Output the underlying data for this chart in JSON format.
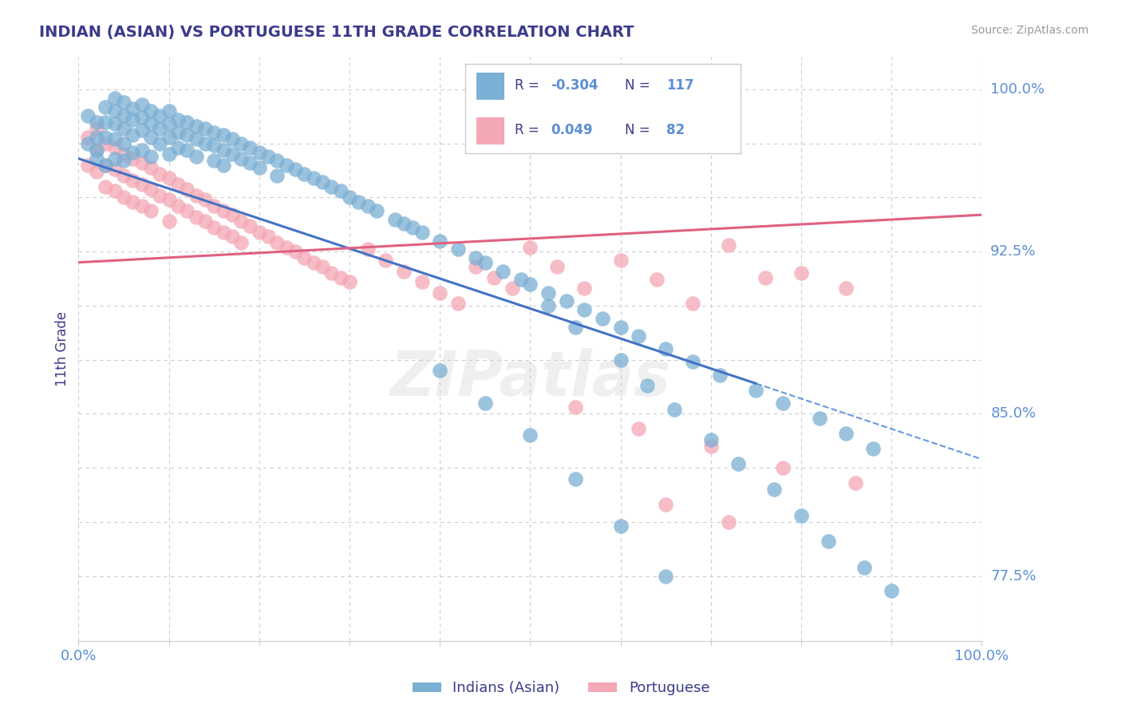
{
  "title": "INDIAN (ASIAN) VS PORTUGUESE 11TH GRADE CORRELATION CHART",
  "source": "Source: ZipAtlas.com",
  "ylabel": "11th Grade",
  "xlim": [
    0.0,
    1.0
  ],
  "ylim": [
    0.745,
    1.015
  ],
  "blue_color": "#7BAFD4",
  "pink_color": "#F4A7B5",
  "blue_R": -0.304,
  "blue_N": 117,
  "pink_R": 0.049,
  "pink_N": 82,
  "legend_label_blue": "Indians (Asian)",
  "legend_label_pink": "Portuguese",
  "title_color": "#3B3B8C",
  "axis_color": "#5B8ED6",
  "bg_color": "#FFFFFF",
  "grid_color": "#CCCCCC",
  "blue_line_start_x": 0.0,
  "blue_line_start_y": 0.968,
  "blue_line_solid_end_x": 0.75,
  "blue_line_solid_end_y": 0.864,
  "blue_line_dash_end_x": 1.0,
  "blue_line_dash_end_y": 0.829,
  "pink_line_start_x": 0.0,
  "pink_line_start_y": 0.92,
  "pink_line_end_x": 1.0,
  "pink_line_end_y": 0.942,
  "blue_x": [
    0.01,
    0.01,
    0.02,
    0.02,
    0.02,
    0.02,
    0.03,
    0.03,
    0.03,
    0.03,
    0.04,
    0.04,
    0.04,
    0.04,
    0.04,
    0.05,
    0.05,
    0.05,
    0.05,
    0.05,
    0.06,
    0.06,
    0.06,
    0.06,
    0.07,
    0.07,
    0.07,
    0.07,
    0.08,
    0.08,
    0.08,
    0.08,
    0.09,
    0.09,
    0.09,
    0.1,
    0.1,
    0.1,
    0.1,
    0.11,
    0.11,
    0.11,
    0.12,
    0.12,
    0.12,
    0.13,
    0.13,
    0.13,
    0.14,
    0.14,
    0.15,
    0.15,
    0.15,
    0.16,
    0.16,
    0.16,
    0.17,
    0.17,
    0.18,
    0.18,
    0.19,
    0.19,
    0.2,
    0.2,
    0.21,
    0.22,
    0.22,
    0.23,
    0.24,
    0.25,
    0.26,
    0.27,
    0.28,
    0.29,
    0.3,
    0.31,
    0.32,
    0.33,
    0.35,
    0.36,
    0.37,
    0.38,
    0.4,
    0.42,
    0.44,
    0.45,
    0.47,
    0.49,
    0.5,
    0.52,
    0.54,
    0.56,
    0.58,
    0.6,
    0.62,
    0.65,
    0.68,
    0.71,
    0.75,
    0.78,
    0.82,
    0.85,
    0.88,
    0.52,
    0.55,
    0.6,
    0.63,
    0.66,
    0.7,
    0.73,
    0.77,
    0.8,
    0.83,
    0.87,
    0.9,
    0.4,
    0.45,
    0.5,
    0.55,
    0.6,
    0.65
  ],
  "blue_y": [
    0.988,
    0.975,
    0.985,
    0.978,
    0.972,
    0.968,
    0.992,
    0.985,
    0.978,
    0.965,
    0.996,
    0.99,
    0.984,
    0.977,
    0.968,
    0.994,
    0.988,
    0.982,
    0.975,
    0.967,
    0.991,
    0.986,
    0.979,
    0.971,
    0.993,
    0.987,
    0.981,
    0.972,
    0.99,
    0.984,
    0.978,
    0.969,
    0.988,
    0.982,
    0.975,
    0.99,
    0.984,
    0.978,
    0.97,
    0.986,
    0.98,
    0.973,
    0.985,
    0.979,
    0.972,
    0.983,
    0.977,
    0.969,
    0.982,
    0.975,
    0.98,
    0.974,
    0.967,
    0.979,
    0.972,
    0.965,
    0.977,
    0.97,
    0.975,
    0.968,
    0.973,
    0.966,
    0.971,
    0.964,
    0.969,
    0.967,
    0.96,
    0.965,
    0.963,
    0.961,
    0.959,
    0.957,
    0.955,
    0.953,
    0.95,
    0.948,
    0.946,
    0.944,
    0.94,
    0.938,
    0.936,
    0.934,
    0.93,
    0.926,
    0.922,
    0.92,
    0.916,
    0.912,
    0.91,
    0.906,
    0.902,
    0.898,
    0.894,
    0.89,
    0.886,
    0.88,
    0.874,
    0.868,
    0.861,
    0.855,
    0.848,
    0.841,
    0.834,
    0.9,
    0.89,
    0.875,
    0.863,
    0.852,
    0.838,
    0.827,
    0.815,
    0.803,
    0.791,
    0.779,
    0.768,
    0.87,
    0.855,
    0.84,
    0.82,
    0.798,
    0.775
  ],
  "pink_x": [
    0.01,
    0.01,
    0.02,
    0.02,
    0.02,
    0.03,
    0.03,
    0.03,
    0.04,
    0.04,
    0.04,
    0.05,
    0.05,
    0.05,
    0.06,
    0.06,
    0.06,
    0.07,
    0.07,
    0.07,
    0.08,
    0.08,
    0.08,
    0.09,
    0.09,
    0.1,
    0.1,
    0.1,
    0.11,
    0.11,
    0.12,
    0.12,
    0.13,
    0.13,
    0.14,
    0.14,
    0.15,
    0.15,
    0.16,
    0.16,
    0.17,
    0.17,
    0.18,
    0.18,
    0.19,
    0.2,
    0.21,
    0.22,
    0.23,
    0.24,
    0.25,
    0.26,
    0.27,
    0.28,
    0.29,
    0.3,
    0.32,
    0.34,
    0.36,
    0.38,
    0.4,
    0.42,
    0.44,
    0.46,
    0.48,
    0.5,
    0.53,
    0.56,
    0.6,
    0.64,
    0.68,
    0.72,
    0.76,
    0.8,
    0.85,
    0.55,
    0.62,
    0.7,
    0.78,
    0.86,
    0.65,
    0.72
  ],
  "pink_y": [
    0.978,
    0.965,
    0.982,
    0.972,
    0.962,
    0.975,
    0.965,
    0.955,
    0.973,
    0.963,
    0.953,
    0.97,
    0.96,
    0.95,
    0.968,
    0.958,
    0.948,
    0.966,
    0.956,
    0.946,
    0.964,
    0.954,
    0.944,
    0.961,
    0.951,
    0.959,
    0.949,
    0.939,
    0.956,
    0.946,
    0.954,
    0.944,
    0.951,
    0.941,
    0.949,
    0.939,
    0.946,
    0.936,
    0.944,
    0.934,
    0.942,
    0.932,
    0.939,
    0.929,
    0.937,
    0.934,
    0.932,
    0.929,
    0.927,
    0.925,
    0.922,
    0.92,
    0.918,
    0.915,
    0.913,
    0.911,
    0.926,
    0.921,
    0.916,
    0.911,
    0.906,
    0.901,
    0.918,
    0.913,
    0.908,
    0.927,
    0.918,
    0.908,
    0.921,
    0.912,
    0.901,
    0.928,
    0.913,
    0.915,
    0.908,
    0.853,
    0.843,
    0.835,
    0.825,
    0.818,
    0.808,
    0.8
  ]
}
